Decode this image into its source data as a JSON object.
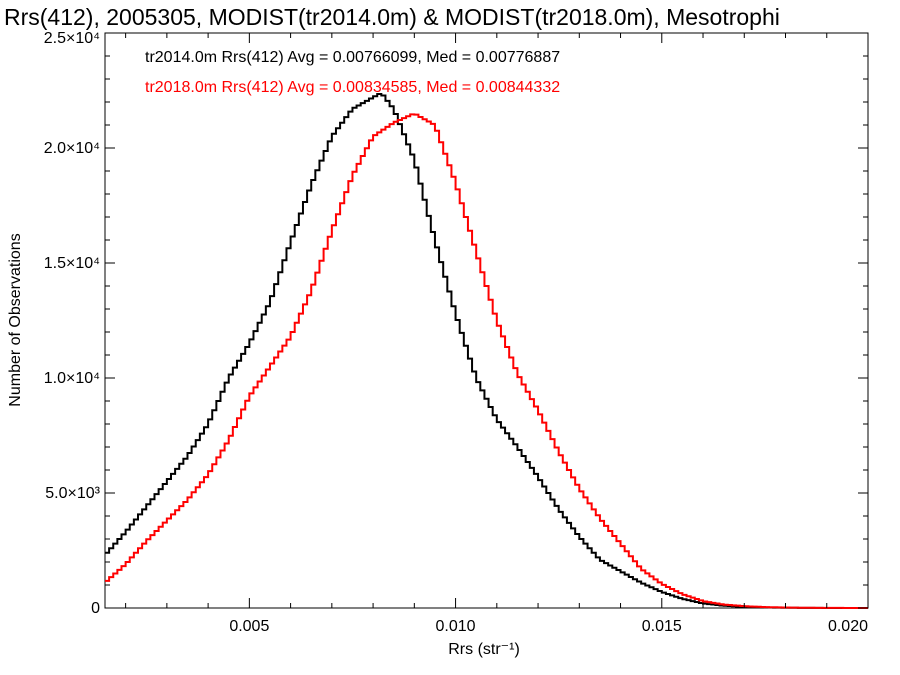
{
  "chart_data": {
    "type": "line",
    "title": "Rrs(412), 2005305, MODIST(tr2014.0m) & MODIST(tr2018.0m), Mesotrophi",
    "xlabel": "Rrs (str⁻¹)",
    "ylabel": "Number of Observations",
    "xlim": [
      0.0015,
      0.02
    ],
    "ylim": [
      0,
      25000
    ],
    "grid": false,
    "legend_placement": "top-left",
    "x_ticks": [
      {
        "value": 0.005,
        "label": "0.005"
      },
      {
        "value": 0.01,
        "label": "0.010"
      },
      {
        "value": 0.015,
        "label": "0.015"
      },
      {
        "value": 0.02,
        "label": "0.020"
      }
    ],
    "y_ticks": [
      {
        "value": 0,
        "label": "0"
      },
      {
        "value": 5000,
        "label": "5.0×10³"
      },
      {
        "value": 10000,
        "label": "1.0×10⁴"
      },
      {
        "value": 15000,
        "label": "1.5×10⁴"
      },
      {
        "value": 20000,
        "label": "2.0×10⁴"
      },
      {
        "value": 25000,
        "label": "2.5×10⁴"
      }
    ],
    "series": [
      {
        "name": "tr2014.0m",
        "legend_text": "tr2014.0m Rrs(412) Avg = 0.00766099, Med = 0.00776887",
        "color": "#000000",
        "x": [
          0.0015,
          0.002,
          0.0025,
          0.003,
          0.0035,
          0.004,
          0.0045,
          0.005,
          0.0055,
          0.006,
          0.0065,
          0.007,
          0.0075,
          0.008,
          0.0082,
          0.0085,
          0.009,
          0.0095,
          0.01,
          0.0105,
          0.011,
          0.0115,
          0.012,
          0.0125,
          0.013,
          0.0135,
          0.014,
          0.0145,
          0.015,
          0.0155,
          0.016,
          0.0165,
          0.017,
          0.0175,
          0.018,
          0.0185,
          0.019,
          0.0195,
          0.02
        ],
        "y": [
          2300,
          3300,
          4400,
          5500,
          6600,
          8000,
          10000,
          11500,
          13300,
          15900,
          18400,
          20500,
          21700,
          22200,
          22400,
          21700,
          19500,
          16000,
          12800,
          10000,
          8200,
          7000,
          5700,
          4300,
          3100,
          2100,
          1600,
          1100,
          700,
          400,
          200,
          100,
          50,
          25,
          12,
          5,
          2,
          1,
          0
        ]
      },
      {
        "name": "tr2018.0m",
        "legend_text": "tr2018.0m Rrs(412) Avg = 0.00834585, Med = 0.00844332",
        "color": "#ff0000",
        "x": [
          0.0015,
          0.002,
          0.0025,
          0.003,
          0.0035,
          0.004,
          0.0045,
          0.005,
          0.0055,
          0.006,
          0.0065,
          0.007,
          0.0075,
          0.008,
          0.0085,
          0.009,
          0.0095,
          0.01,
          0.0105,
          0.011,
          0.0115,
          0.012,
          0.0125,
          0.013,
          0.0135,
          0.014,
          0.0145,
          0.015,
          0.0155,
          0.016,
          0.0165,
          0.017,
          0.0175,
          0.018,
          0.0185,
          0.019,
          0.0195,
          0.02
        ],
        "y": [
          1100,
          1900,
          2900,
          3800,
          4700,
          5800,
          7300,
          9200,
          10500,
          11800,
          13800,
          16400,
          18800,
          20500,
          21100,
          21500,
          21000,
          18500,
          15500,
          12500,
          10200,
          8600,
          6800,
          5200,
          3900,
          2800,
          1700,
          1050,
          600,
          300,
          150,
          80,
          40,
          20,
          10,
          5,
          2,
          0
        ]
      }
    ]
  }
}
